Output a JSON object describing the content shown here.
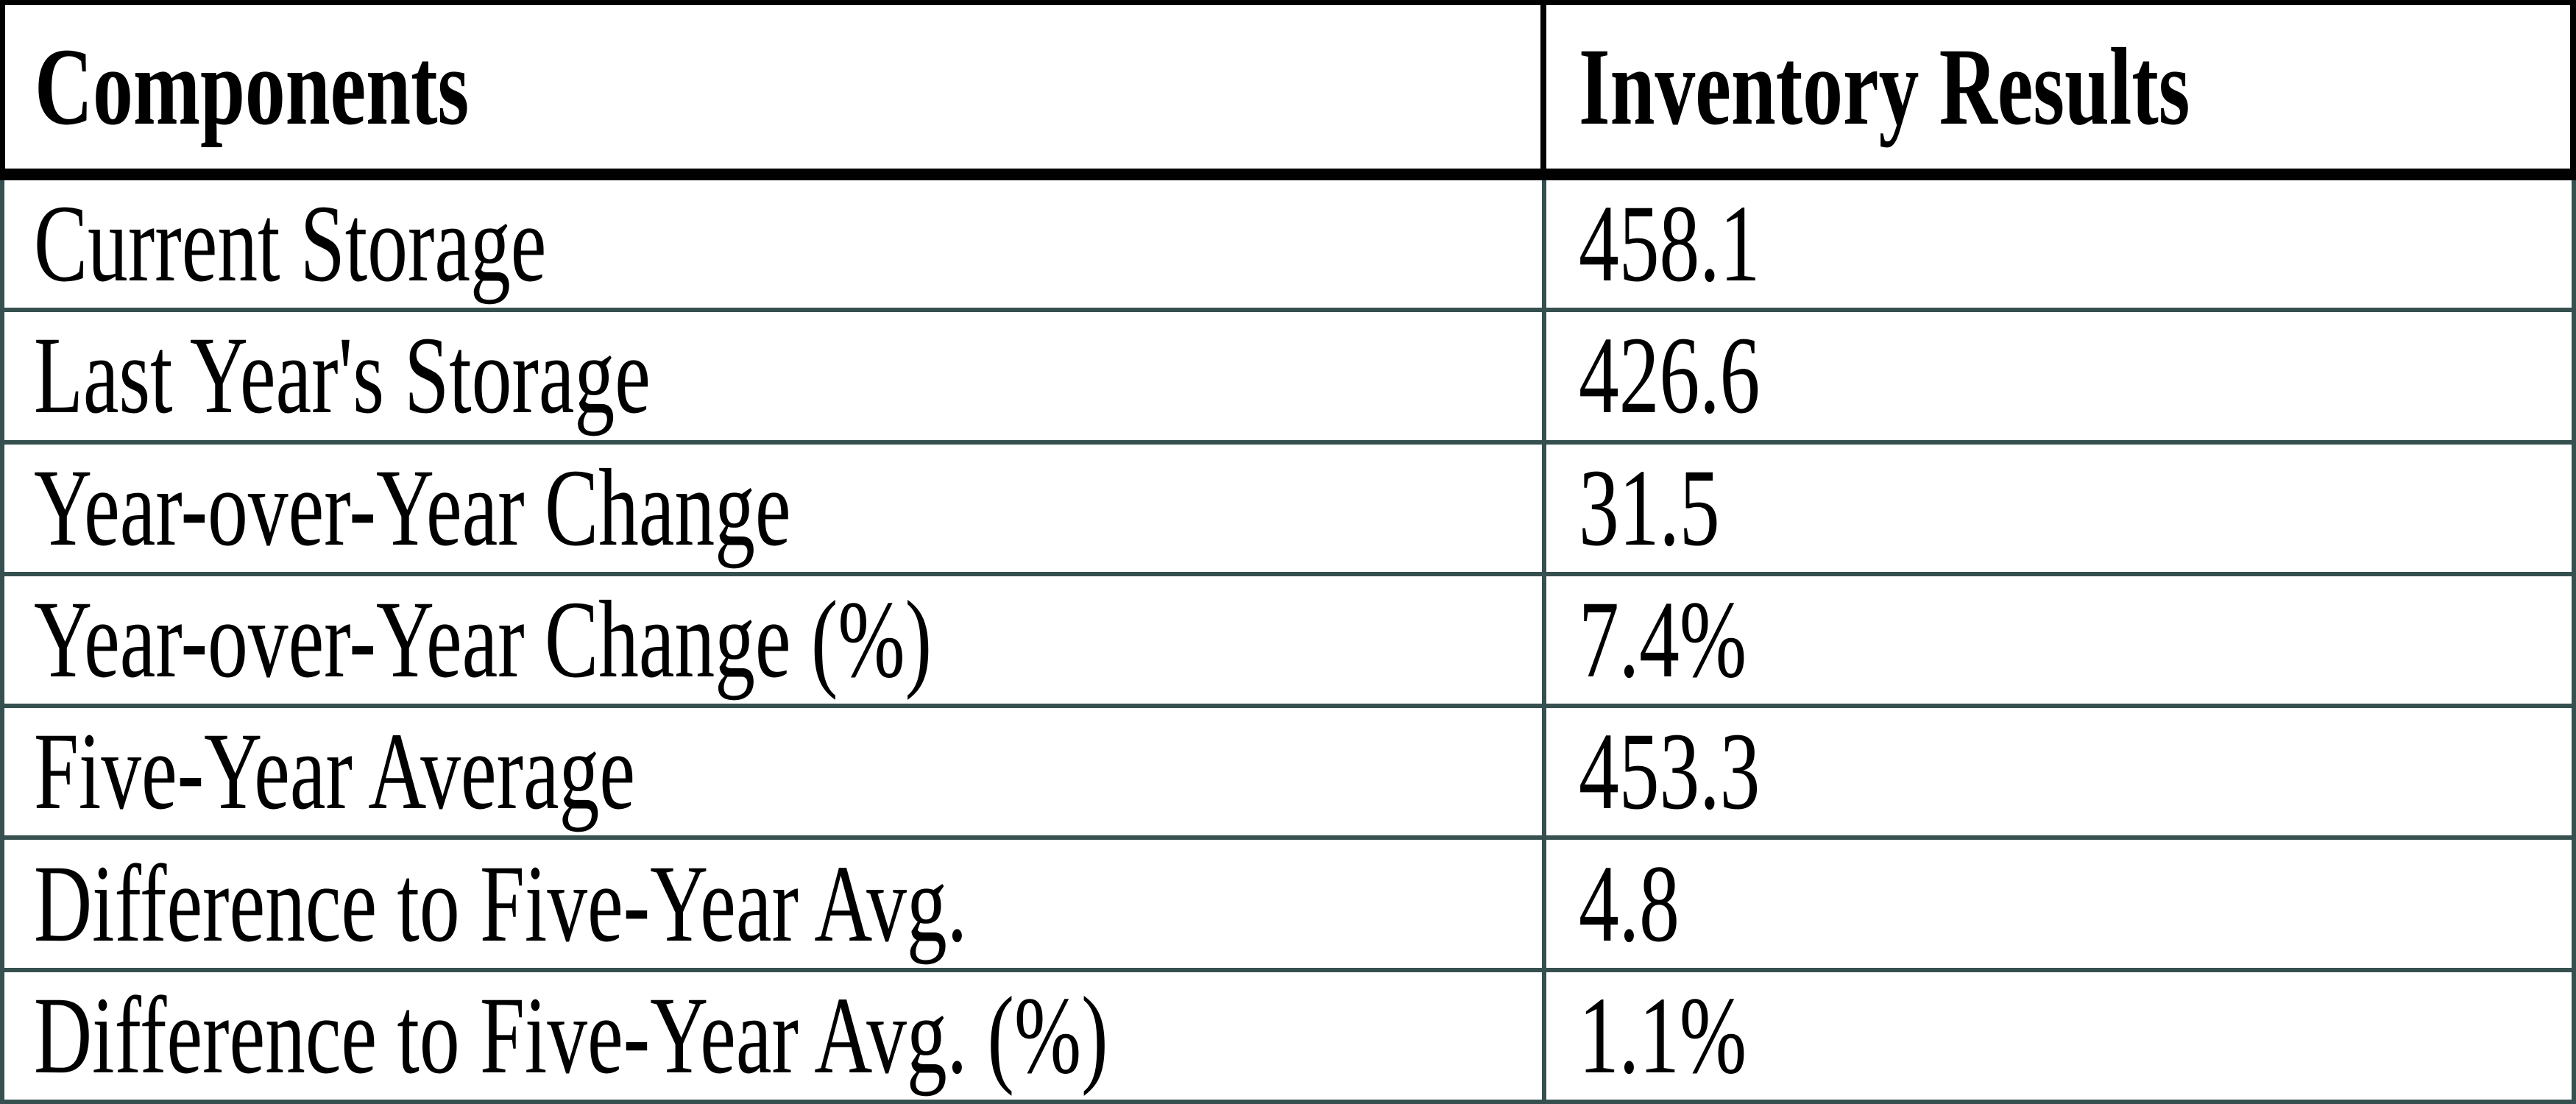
{
  "table": {
    "header": {
      "components_label": "Components",
      "results_label": "Inventory Results"
    },
    "rows": [
      {
        "component": "Current Storage",
        "value": "458.1"
      },
      {
        "component": "Last Year's Storage",
        "value": "426.6"
      },
      {
        "component": "Year-over-Year Change",
        "value": "31.5"
      },
      {
        "component": "Year-over-Year Change (%)",
        "value": "7.4%"
      },
      {
        "component": "Five-Year Average",
        "value": "453.3"
      },
      {
        "component": "Difference to Five-Year Avg.",
        "value": "4.8"
      },
      {
        "component": "Difference to Five-Year Avg. (%)",
        "value": "1.1%"
      }
    ]
  },
  "colors": {
    "text": "#000000",
    "background": "#ffffff",
    "header_border": "#010101",
    "row_border": "#35504f"
  },
  "chart_data": {
    "type": "table",
    "columns": [
      "Components",
      "Inventory Results"
    ],
    "rows": [
      [
        "Current Storage",
        "458.1"
      ],
      [
        "Last Year's Storage",
        "426.6"
      ],
      [
        "Year-over-Year Change",
        "31.5"
      ],
      [
        "Year-over-Year Change (%)",
        "7.4%"
      ],
      [
        "Five-Year Average",
        "453.3"
      ],
      [
        "Difference to Five-Year Avg.",
        "4.8"
      ],
      [
        "Difference to Five-Year Avg. (%)",
        "1.1%"
      ]
    ],
    "numeric_values": {
      "current_storage": 458.1,
      "last_years_storage": 426.6,
      "year_over_year_change": 31.5,
      "year_over_year_change_pct": 7.4,
      "five_year_average": 453.3,
      "difference_to_five_year_avg": 4.8,
      "difference_to_five_year_avg_pct": 1.1
    }
  }
}
